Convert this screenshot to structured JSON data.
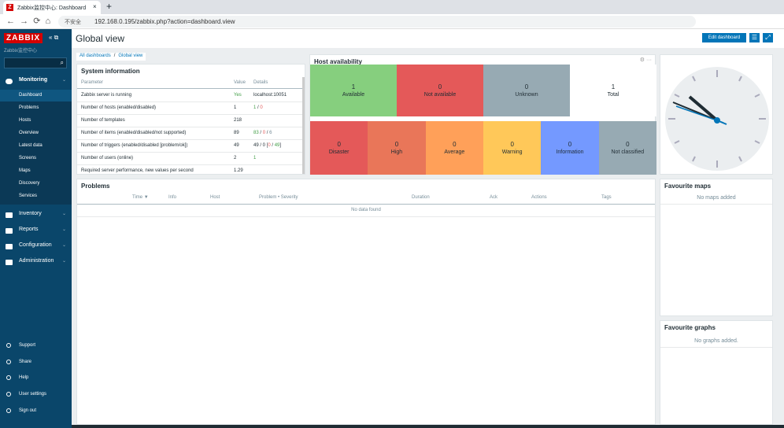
{
  "browser": {
    "tab_title": "Zabbix监控中心: Dashboard",
    "security": "不安全",
    "url": "192.168.0.195/zabbix.php?action=dashboard.view"
  },
  "sidebar": {
    "logo": "ZABBIX",
    "subtitle": "Zabbix监控中心",
    "menu": [
      {
        "label": "Monitoring",
        "items": [
          "Dashboard",
          "Problems",
          "Hosts",
          "Overview",
          "Latest data",
          "Screens",
          "Maps",
          "Discovery",
          "Services"
        ]
      },
      {
        "label": "Inventory"
      },
      {
        "label": "Reports"
      },
      {
        "label": "Configuration"
      },
      {
        "label": "Administration"
      }
    ],
    "footer": [
      "Support",
      "Share",
      "Help",
      "User settings",
      "Sign out"
    ]
  },
  "header": {
    "title": "Global view",
    "button": "Edit dashboard"
  },
  "breadcrumbs": {
    "items": [
      "All dashboards",
      "Global view"
    ],
    "separator": "/"
  },
  "system_info": {
    "title": "System information",
    "columns": [
      "Parameter",
      "Value",
      "Details"
    ],
    "rows": [
      {
        "parameter": "Zabbix server is running",
        "value": "Yes",
        "value_color": "green",
        "details": [
          {
            "text": "localhost:10051"
          }
        ]
      },
      {
        "parameter": "Number of hosts (enabled/disabled)",
        "value": "1",
        "details": [
          {
            "text": "1",
            "color": "green"
          },
          {
            "text": " / "
          },
          {
            "text": "0",
            "color": "red"
          }
        ]
      },
      {
        "parameter": "Number of templates",
        "value": "218"
      },
      {
        "parameter": "Number of items (enabled/disabled/not supported)",
        "value": "89",
        "details": [
          {
            "text": "83",
            "color": "green"
          },
          {
            "text": " / "
          },
          {
            "text": "0",
            "color": "red"
          },
          {
            "text": " / "
          },
          {
            "text": "6",
            "color": "grey"
          }
        ]
      },
      {
        "parameter": "Number of triggers (enabled/disabled [problem/ok])",
        "value": "49",
        "details": [
          {
            "text": "49 / 0 ["
          },
          {
            "text": "0",
            "color": "red"
          },
          {
            "text": " / "
          },
          {
            "text": "49",
            "color": "green"
          },
          {
            "text": "]"
          }
        ]
      },
      {
        "parameter": "Number of users (online)",
        "value": "2",
        "details": [
          {
            "text": "1",
            "color": "green"
          }
        ]
      },
      {
        "parameter": "Required server performance, new values per second",
        "value": "1.29"
      }
    ]
  },
  "host_availability": {
    "title": "Host availability",
    "hosts": [
      {
        "count": "1",
        "label": "Available",
        "color": "#86cf7e"
      },
      {
        "count": "0",
        "label": "Not available",
        "color": "#e45959"
      },
      {
        "count": "0",
        "label": "Unknown",
        "color": "#97aab3"
      },
      {
        "count": "1",
        "label": "Total",
        "color": "#ffffff"
      }
    ],
    "severities": [
      {
        "count": "0",
        "label": "Disaster",
        "color": "#e45959"
      },
      {
        "count": "0",
        "label": "High",
        "color": "#e97659"
      },
      {
        "count": "0",
        "label": "Average",
        "color": "#ffa059"
      },
      {
        "count": "0",
        "label": "Warning",
        "color": "#ffc859"
      },
      {
        "count": "0",
        "label": "Information",
        "color": "#7499ff"
      },
      {
        "count": "0",
        "label": "Not classified",
        "color": "#97aab3"
      }
    ]
  },
  "problems": {
    "title": "Problems",
    "columns": [
      "Time ▼",
      "Info",
      "Host",
      "Problem • Severity",
      "Duration",
      "Ack",
      "Actions",
      "Tags"
    ],
    "empty": "No data found"
  },
  "favourite_maps": {
    "title": "Favourite maps",
    "empty": "No maps added"
  },
  "favourite_graphs": {
    "title": "Favourite graphs",
    "empty": "No graphs added."
  }
}
